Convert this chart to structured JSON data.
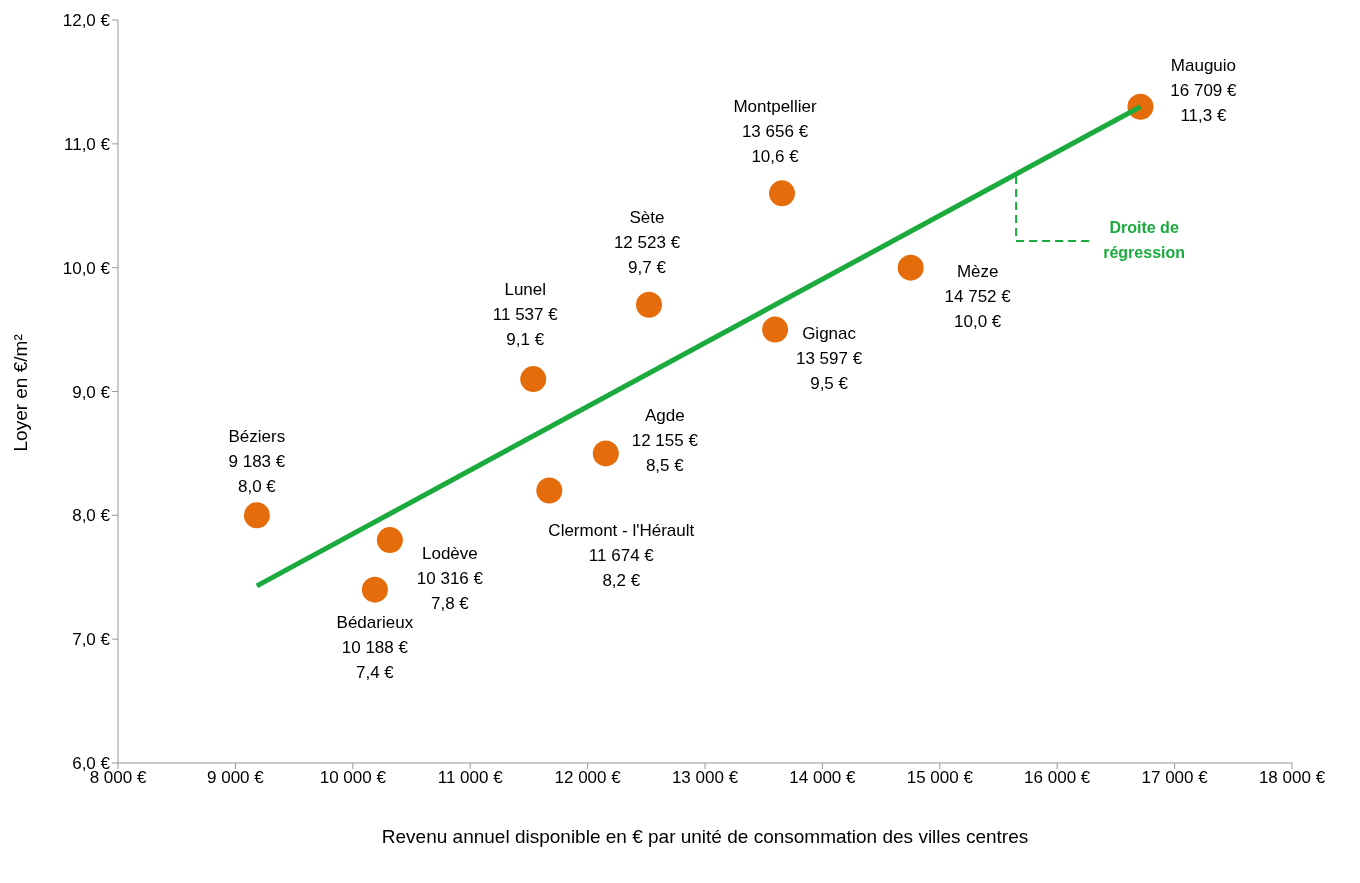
{
  "chart_data": {
    "type": "scatter",
    "xlabel": "Revenu annuel disponible en € par unité de consommation des villes centres",
    "ylabel": "Loyer en €/m²",
    "xlim": [
      8000,
      18000
    ],
    "xticks": [
      {
        "value": 8000,
        "label": "8 000 €"
      },
      {
        "value": 9000,
        "label": "9 000 €"
      },
      {
        "value": 10000,
        "label": "10 000 €"
      },
      {
        "value": 11000,
        "label": "11 000 €"
      },
      {
        "value": 12000,
        "label": "12 000 €"
      },
      {
        "value": 13000,
        "label": "13 000 €"
      },
      {
        "value": 14000,
        "label": "14 000 €"
      },
      {
        "value": 15000,
        "label": "15 000 €"
      },
      {
        "value": 16000,
        "label": "16 000 €"
      },
      {
        "value": 17000,
        "label": "17 000 €"
      },
      {
        "value": 18000,
        "label": "18 000 €"
      }
    ],
    "ylim": [
      6,
      12
    ],
    "yticks": [
      {
        "value": 6,
        "label": "6,0 €"
      },
      {
        "value": 7,
        "label": "7,0 €"
      },
      {
        "value": 8,
        "label": "8,0 €"
      },
      {
        "value": 9,
        "label": "9,0 €"
      },
      {
        "value": 10,
        "label": "10,0 €"
      },
      {
        "value": 11,
        "label": "11,0 €"
      },
      {
        "value": 12,
        "label": "12,0 €"
      }
    ],
    "grid": false,
    "legend": false,
    "series": [
      {
        "marker": "circle",
        "color": "#e46c0a",
        "x": [
          9183,
          10188,
          10316,
          11537,
          11674,
          12155,
          12523,
          13597,
          13656,
          14752,
          16709
        ],
        "values": [
          8.0,
          7.4,
          7.8,
          9.1,
          8.2,
          8.5,
          9.7,
          9.5,
          10.6,
          10.0,
          11.3
        ]
      },
      {
        "type": "line",
        "marker": "none",
        "color": "#1aaa3d",
        "x": [
          9183,
          16709
        ],
        "values": [
          7.43,
          11.3
        ]
      }
    ],
    "annotations": [
      {
        "text": "Béziers\n9 183 €\n8,0 €",
        "x": 9183,
        "y": 8.0
      },
      {
        "text": "Bédarieux\n10 188 €\n7,4 €",
        "x": 10188,
        "y": 7.4
      },
      {
        "text": "Lodève\n10 316 €\n7,8 €",
        "x": 10316,
        "y": 7.8
      },
      {
        "text": "Lunel\n11 537 €\n9,1 €",
        "x": 11537,
        "y": 9.1
      },
      {
        "text": "Clermont - l'Hérault\n11 674 €\n8,2 €",
        "x": 11674,
        "y": 8.2
      },
      {
        "text": "Agde\n12 155 €\n8,5 €",
        "x": 12155,
        "y": 8.5
      },
      {
        "text": "Sète\n12 523 €\n9,7 €",
        "x": 12523,
        "y": 9.7
      },
      {
        "text": "Gignac\n13 597 €\n9,5 €",
        "x": 13597,
        "y": 9.5
      },
      {
        "text": "Montpellier\n13 656 €\n10,6 €",
        "x": 13656,
        "y": 10.6
      },
      {
        "text": "Mèze\n14 752 €\n10,0 €",
        "x": 14752,
        "y": 10.0
      },
      {
        "text": "Mauguio\n16 709 €\n11,3 €",
        "x": 16709,
        "y": 11.3
      },
      {
        "text": "Droite de\nrégression",
        "x": 15650,
        "y": 10.74
      }
    ]
  }
}
